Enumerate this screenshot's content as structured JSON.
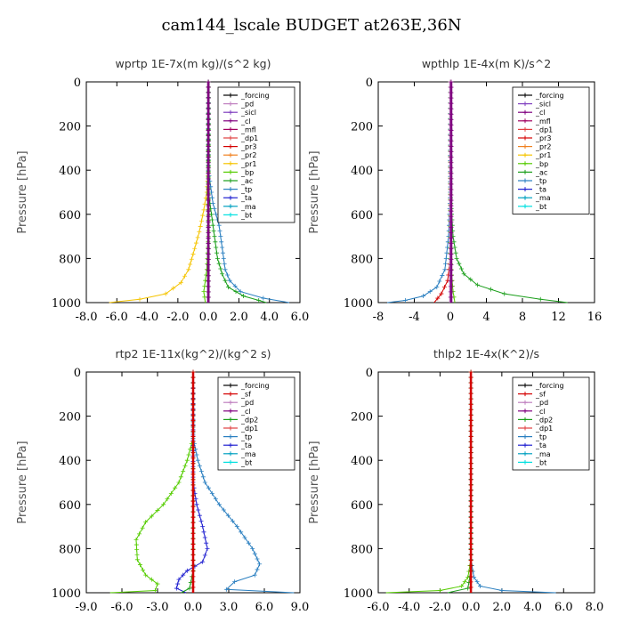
{
  "figure_title": "cam144_lscale  BUDGET at263E,36N",
  "chart_data": [
    {
      "type": "line",
      "title": "wprtp   1E-7x(m kg)/(s^2 kg)",
      "ylabel": "Pressure [hPa]",
      "xlim": [
        -8,
        6
      ],
      "xticks": [
        -8,
        -6,
        -4,
        -2,
        0,
        2,
        4,
        6
      ],
      "xtick_labels": [
        "-8.0",
        "-6.0",
        "-4.0",
        "-2.0",
        "0.0",
        "2.0",
        "4.0",
        "6.0"
      ],
      "ylim": [
        0,
        1000
      ],
      "yticks": [
        0,
        200,
        400,
        600,
        800,
        1000
      ],
      "legend_position": "top-right",
      "legend": [
        "_forcing",
        "_pd",
        "_sicl",
        "_cl",
        "_mfl",
        "_dp1",
        "_pr3",
        "_pr2",
        "_pr1",
        "_bp",
        "_ac",
        "_tp",
        "_ta",
        "_ma",
        "_bt"
      ],
      "series": [
        {
          "name": "_pr1",
          "color": "#f5c400",
          "points": [
            [
              0,
              0
            ],
            [
              0,
              400
            ],
            [
              -0.1,
              500
            ],
            [
              -0.3,
              580
            ],
            [
              -0.6,
              680
            ],
            [
              -1.0,
              780
            ],
            [
              -1.3,
              850
            ],
            [
              -1.8,
              910
            ],
            [
              -2.8,
              960
            ],
            [
              -4.5,
              985
            ],
            [
              -6.5,
              1000
            ]
          ]
        },
        {
          "name": "_ac",
          "color": "#1a9e1a",
          "points": [
            [
              0,
              0
            ],
            [
              0,
              500
            ],
            [
              0.2,
              600
            ],
            [
              0.4,
              700
            ],
            [
              0.6,
              800
            ],
            [
              0.9,
              870
            ],
            [
              1.3,
              930
            ],
            [
              2.3,
              970
            ],
            [
              3.3,
              990
            ],
            [
              3.8,
              1000
            ]
          ]
        },
        {
          "name": "_tp",
          "color": "#2a7fc0",
          "points": [
            [
              0,
              0
            ],
            [
              0,
              400
            ],
            [
              0.3,
              550
            ],
            [
              0.7,
              650
            ],
            [
              0.9,
              750
            ],
            [
              1.1,
              850
            ],
            [
              1.4,
              900
            ],
            [
              2.1,
              950
            ],
            [
              3.6,
              980
            ],
            [
              5.3,
              1000
            ]
          ]
        },
        {
          "name": "_bp",
          "color": "#55cc00",
          "points": [
            [
              0,
              0
            ],
            [
              0,
              700
            ],
            [
              -0.1,
              850
            ],
            [
              -0.3,
              950
            ],
            [
              -0.2,
              1000
            ]
          ]
        },
        {
          "name": "_forcing",
          "color": "#000000",
          "points": [
            [
              0,
              0
            ],
            [
              0,
              1000
            ]
          ]
        },
        {
          "name": "_cl",
          "color": "#800080",
          "points": [
            [
              0,
              0
            ],
            [
              0,
              1000
            ]
          ]
        }
      ]
    },
    {
      "type": "line",
      "title": "wpthlp   1E-4x(m K)/s^2",
      "ylabel": "Pressure [hPa]",
      "xlim": [
        -8,
        16
      ],
      "xticks": [
        -8,
        -4,
        0,
        4,
        8,
        12,
        16
      ],
      "xtick_labels": [
        "-8",
        "-4",
        "0",
        "4",
        "8",
        "12",
        "16"
      ],
      "ylim": [
        0,
        1000
      ],
      "yticks": [
        0,
        200,
        400,
        600,
        800,
        1000
      ],
      "legend_position": "top-right",
      "legend": [
        "_forcing",
        "_sicl",
        "_cl",
        "_mfl",
        "_dp1",
        "_pr3",
        "_pr2",
        "_pr1",
        "_bp",
        "_ac",
        "_tp",
        "_ta",
        "_ma",
        "_bt"
      ],
      "series": [
        {
          "name": "_bp",
          "color": "#1a9e1a",
          "points": [
            [
              0,
              0
            ],
            [
              0,
              500
            ],
            [
              0.3,
              700
            ],
            [
              0.7,
              800
            ],
            [
              1.5,
              870
            ],
            [
              3,
              920
            ],
            [
              6,
              960
            ],
            [
              10,
              985
            ],
            [
              13,
              1000
            ]
          ]
        },
        {
          "name": "_tp",
          "color": "#2a7fc0",
          "points": [
            [
              0,
              0
            ],
            [
              0,
              500
            ],
            [
              -0.2,
              700
            ],
            [
              -0.6,
              850
            ],
            [
              -1.5,
              930
            ],
            [
              -3,
              970
            ],
            [
              -5,
              990
            ],
            [
              -7,
              1000
            ]
          ]
        },
        {
          "name": "_pr3",
          "color": "#d40000",
          "points": [
            [
              0,
              0
            ],
            [
              0,
              800
            ],
            [
              -0.3,
              900
            ],
            [
              -1,
              960
            ],
            [
              -1.8,
              1000
            ]
          ]
        },
        {
          "name": "_ac",
          "color": "#55cc00",
          "points": [
            [
              0,
              0
            ],
            [
              0,
              800
            ],
            [
              0.3,
              950
            ],
            [
              0.5,
              1000
            ]
          ]
        },
        {
          "name": "_forcing",
          "color": "#c080c0",
          "points": [
            [
              0,
              0
            ],
            [
              0,
              1000
            ]
          ]
        },
        {
          "name": "_mfl",
          "color": "#800080",
          "points": [
            [
              0.1,
              0
            ],
            [
              0.1,
              1000
            ]
          ]
        }
      ]
    },
    {
      "type": "line",
      "title": "rtp2   1E-11x(kg^2)/(kg^2 s)",
      "ylabel": "Pressure [hPa]",
      "xlim": [
        -9,
        9
      ],
      "xticks": [
        -9,
        -6,
        -3,
        0,
        3,
        6,
        9
      ],
      "xtick_labels": [
        "-9.0",
        "-6.0",
        "-3.0",
        "0.0",
        "3.0",
        "6.0",
        "9.0"
      ],
      "ylim": [
        0,
        1000
      ],
      "yticks": [
        0,
        200,
        400,
        600,
        800,
        1000
      ],
      "legend_position": "top-right",
      "legend": [
        "_forcing",
        "_sf",
        "_pd",
        "_cl",
        "_dp2",
        "_dp1",
        "_tp",
        "_ta",
        "_ma",
        "_bt"
      ],
      "series": [
        {
          "name": "_dp1",
          "color": "#55cc00",
          "points": [
            [
              0,
              0
            ],
            [
              0,
              300
            ],
            [
              -0.5,
              400
            ],
            [
              -1.2,
              500
            ],
            [
              -2.5,
              600
            ],
            [
              -4,
              680
            ],
            [
              -4.8,
              760
            ],
            [
              -4.7,
              850
            ],
            [
              -4,
              920
            ],
            [
              -3,
              960
            ],
            [
              -3.2,
              990
            ],
            [
              -7,
              1000
            ]
          ]
        },
        {
          "name": "_tp",
          "color": "#2a7fc0",
          "points": [
            [
              0,
              0
            ],
            [
              0,
              300
            ],
            [
              0.4,
              400
            ],
            [
              1,
              500
            ],
            [
              2.2,
              600
            ],
            [
              3.7,
              700
            ],
            [
              5,
              800
            ],
            [
              5.6,
              870
            ],
            [
              5.2,
              920
            ],
            [
              3.5,
              950
            ],
            [
              2.8,
              985
            ],
            [
              8.5,
              1000
            ]
          ]
        },
        {
          "name": "_ta",
          "color": "#2020d0",
          "points": [
            [
              0,
              0
            ],
            [
              0,
              500
            ],
            [
              0.3,
              600
            ],
            [
              0.8,
              700
            ],
            [
              1.2,
              800
            ],
            [
              0.8,
              860
            ],
            [
              -0.5,
              900
            ],
            [
              -1.2,
              940
            ],
            [
              -1.4,
              980
            ],
            [
              -0.6,
              1000
            ]
          ]
        },
        {
          "name": "_dp2",
          "color": "#1a9e1a",
          "points": [
            [
              0,
              0
            ],
            [
              0,
              900
            ],
            [
              -0.3,
              980
            ],
            [
              -1,
              1000
            ]
          ]
        },
        {
          "name": "_forcing",
          "color": "#d40000",
          "points": [
            [
              0,
              0
            ],
            [
              0,
              1000
            ]
          ]
        }
      ]
    },
    {
      "type": "line",
      "title": "thlp2   1E-4x(K^2)/s",
      "ylabel": "Pressure [hPa]",
      "xlim": [
        -6,
        8
      ],
      "xticks": [
        -6,
        -4,
        -2,
        0,
        2,
        4,
        6,
        8
      ],
      "xtick_labels": [
        "-6.0",
        "-4.0",
        "-2.0",
        "0.0",
        "2.0",
        "4.0",
        "6.0",
        "8.0"
      ],
      "ylim": [
        0,
        1000
      ],
      "yticks": [
        0,
        200,
        400,
        600,
        800,
        1000
      ],
      "legend_position": "top-right",
      "legend": [
        "_forcing",
        "_sf",
        "_pd",
        "_cl",
        "_dp2",
        "_dp1",
        "_tp",
        "_ta",
        "_ma",
        "_bt"
      ],
      "series": [
        {
          "name": "_dp1",
          "color": "#55cc00",
          "points": [
            [
              0,
              0
            ],
            [
              0,
              850
            ],
            [
              -0.2,
              930
            ],
            [
              -0.6,
              970
            ],
            [
              -2,
              990
            ],
            [
              -5.5,
              1000
            ]
          ]
        },
        {
          "name": "_tp",
          "color": "#2a7fc0",
          "points": [
            [
              0,
              0
            ],
            [
              0,
              850
            ],
            [
              0.2,
              930
            ],
            [
              0.6,
              970
            ],
            [
              2,
              990
            ],
            [
              5.5,
              1000
            ]
          ]
        },
        {
          "name": "_dp2",
          "color": "#1a9e1a",
          "points": [
            [
              0,
              0
            ],
            [
              0,
              900
            ],
            [
              -0.2,
              980
            ],
            [
              -1.5,
              1000
            ]
          ]
        },
        {
          "name": "_forcing",
          "color": "#d40000",
          "points": [
            [
              0,
              0
            ],
            [
              0,
              1000
            ]
          ]
        }
      ]
    }
  ],
  "colors": {
    "_forcing": "#000000",
    "_pd": "#c080c0",
    "_sicl": "#8040c0",
    "_cl": "#800080",
    "_mfl": "#a00060",
    "_dp1": "#e04040",
    "_pr3": "#d40000",
    "_pr2": "#f08020",
    "_pr1": "#f5c400",
    "_bp": "#55cc00",
    "_ac": "#1a9e1a",
    "_tp": "#2a7fc0",
    "_ta": "#2020d0",
    "_ma": "#00a0c0",
    "_bt": "#00e0e0",
    "_sf": "#d40000",
    "_dp2": "#1a9e1a"
  }
}
